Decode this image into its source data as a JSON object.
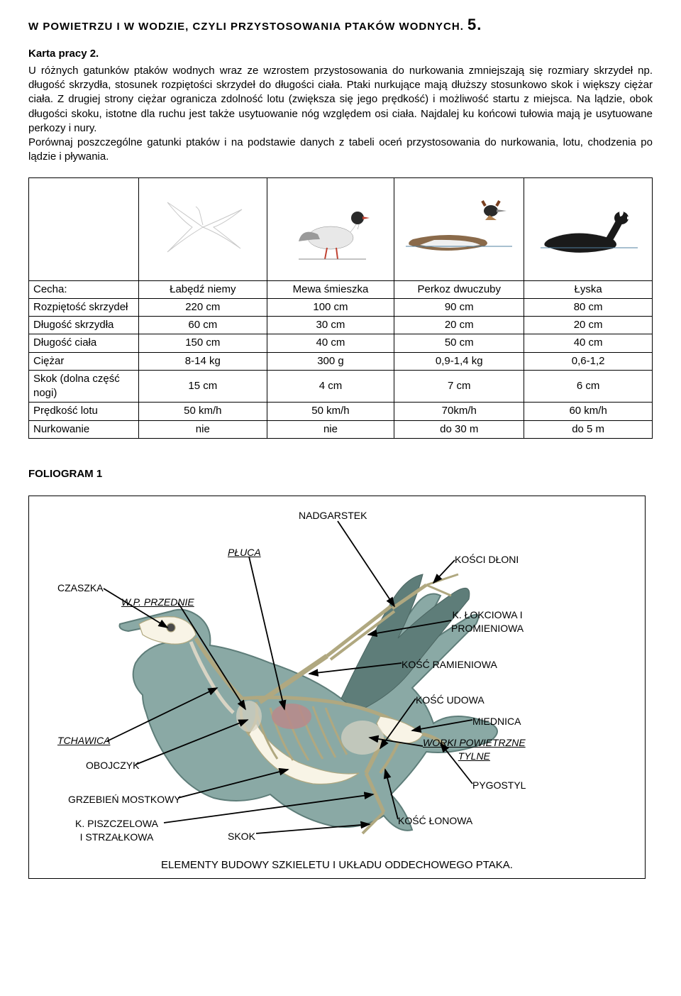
{
  "title_main": "W POWIETRZU I W WODZIE, CZYLI PRZYSTOSOWANIA PTAKÓW WODNYCH. ",
  "title_num": "5.",
  "karta": "Karta pracy 2.",
  "intro": "U różnych gatunków ptaków wodnych wraz ze wzrostem przystosowania do nurkowania zmniejszają się rozmiary skrzydeł np. długość skrzydła, stosunek rozpiętości skrzydeł do długości ciała. Ptaki nurkujące mają dłuższy stosunkowo skok i większy ciężar ciała. Z drugiej strony ciężar ogranicza zdolność lotu (zwiększa się jego prędkość) i możliwość startu z miejsca. Na lądzie, obok długości skoku, istotne dla ruchu jest także usytuowanie nóg względem osi ciała. Najdalej ku końcowi tułowia mają je usytuowane perkozy i nury.\nPorównaj poszczególne gatunki ptaków i na podstawie danych z tabeli oceń przystosowania do nurkowania, lotu, chodzenia po lądzie i pływania.",
  "table": {
    "header_feature": "Cecha:",
    "species": [
      "Łabędź niemy",
      "Mewa śmieszka",
      "Perkoz dwuczuby",
      "Łyska"
    ],
    "rows": [
      {
        "label": "Rozpiętość skrzydeł",
        "v": [
          "220 cm",
          "100 cm",
          "90 cm",
          "80 cm"
        ]
      },
      {
        "label": "Długość skrzydła",
        "v": [
          "60 cm",
          "30 cm",
          "20 cm",
          "20 cm"
        ]
      },
      {
        "label": "Długość ciała",
        "v": [
          "150 cm",
          "40 cm",
          "50 cm",
          "40 cm"
        ]
      },
      {
        "label": "Ciężar",
        "v": [
          "8-14 kg",
          "300 g",
          "0,9-1,4 kg",
          "0,6-1,2"
        ]
      },
      {
        "label": "Skok (dolna część nogi)",
        "v": [
          "15 cm",
          "4 cm",
          "7 cm",
          "6 cm"
        ]
      },
      {
        "label": "Prędkość lotu",
        "v": [
          "50 km/h",
          "50 km/h",
          "70km/h",
          "60 km/h"
        ]
      },
      {
        "label": "Nurkowanie",
        "v": [
          "nie",
          "nie",
          "do 30 m",
          "do 5 m"
        ]
      }
    ],
    "bird_colors": {
      "swan_outline": "#d0d0d0",
      "gull_body": "#e8e8e8",
      "gull_head": "#2a2a2a",
      "gull_wing": "#9a9a9a",
      "gull_beak": "#c04030",
      "gull_legs": "#c04030",
      "grebe_body": "#8a6a4a",
      "grebe_belly": "#f0f0f0",
      "grebe_neck": "#ffffff",
      "grebe_head": "#2a2a2a",
      "grebe_crest": "#7a4020",
      "coot_body": "#1a1a1a",
      "coot_shield": "#ffffff",
      "coot_beak": "#ffffff"
    }
  },
  "foliogram": {
    "title": "FOLIOGRAM 1",
    "caption": "ELEMENTY BUDOWY SZKIELETU I UKŁADU ODDECHOWEGO PTAKA.",
    "duck_colors": {
      "body": "#8aa9a5",
      "body_dark": "#5e7d79",
      "bone": "#f8f4e6",
      "bone_shadow": "#d0c8a8",
      "eye": "#2a2a2a",
      "lung": "#b88a8a",
      "airsac": "#d8d4c4"
    },
    "labels": {
      "nadgarstek": "NADGARSTEK",
      "pluca": "PŁUCA",
      "kosci_dloni": "KOŚCI DŁONI",
      "czaszka": "CZASZKA",
      "wp_przednie": "W.P. PRZEDNIE",
      "k_lokciowa": "K. ŁOKCIOWA I",
      "k_lokciowa2": "PROMIENIOWA",
      "kosc_ramieniowa": "KOŚĆ RAMIENIOWA",
      "kosc_udowa": "KOŚĆ UDOWA",
      "miednica": "MIEDNICA",
      "tchawica": "TCHAWICA",
      "worki_tylne": "WORKI POWIETRZNE",
      "worki_tylne2": "TYLNE",
      "obojczyk": "OBOJCZYK",
      "pygostyl": "PYGOSTYL",
      "grzebien": "GRZEBIEŃ MOSTKOWY",
      "k_piszczelowa": "K. PISZCZELOWA",
      "k_piszczelowa2": "I STRZAŁKOWA",
      "skok": "SKOK",
      "kosc_lonowa": "KOŚĆ ŁONOWA"
    }
  }
}
